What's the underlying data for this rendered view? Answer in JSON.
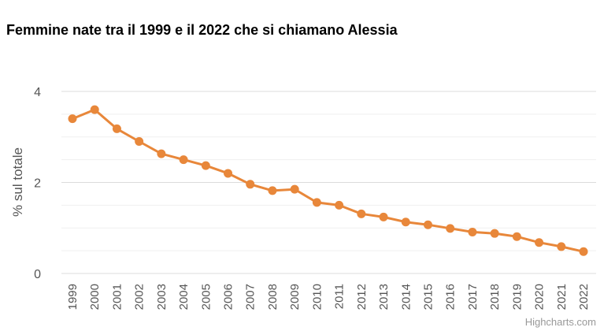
{
  "title": "Femmine nate tra il 1999 e il 2022 che si chiamano Alessia",
  "credits": "Highcharts.com",
  "colors": {
    "series": "#e8873a",
    "grid": "#e6e6e6",
    "axis_text": "#555555",
    "credits": "#999999"
  },
  "chart_data": {
    "type": "line",
    "title": "Femmine nate tra il 1999 e il 2022 che si chiamano Alessia",
    "xlabel": "",
    "ylabel": "% sul totale",
    "ylim": [
      0,
      4
    ],
    "yticks": [
      0,
      2,
      4
    ],
    "grid": true,
    "categories": [
      "1999",
      "2000",
      "2001",
      "2002",
      "2003",
      "2004",
      "2005",
      "2006",
      "2007",
      "2008",
      "2009",
      "2010",
      "2011",
      "2012",
      "2013",
      "2014",
      "2015",
      "2016",
      "2017",
      "2018",
      "2019",
      "2020",
      "2021",
      "2022"
    ],
    "series": [
      {
        "values": [
          3.4,
          3.6,
          3.18,
          2.9,
          2.63,
          2.5,
          2.37,
          2.2,
          1.96,
          1.82,
          1.85,
          1.56,
          1.5,
          1.31,
          1.24,
          1.13,
          1.07,
          0.99,
          0.91,
          0.88,
          0.81,
          0.68,
          0.59,
          0.48
        ]
      }
    ]
  }
}
